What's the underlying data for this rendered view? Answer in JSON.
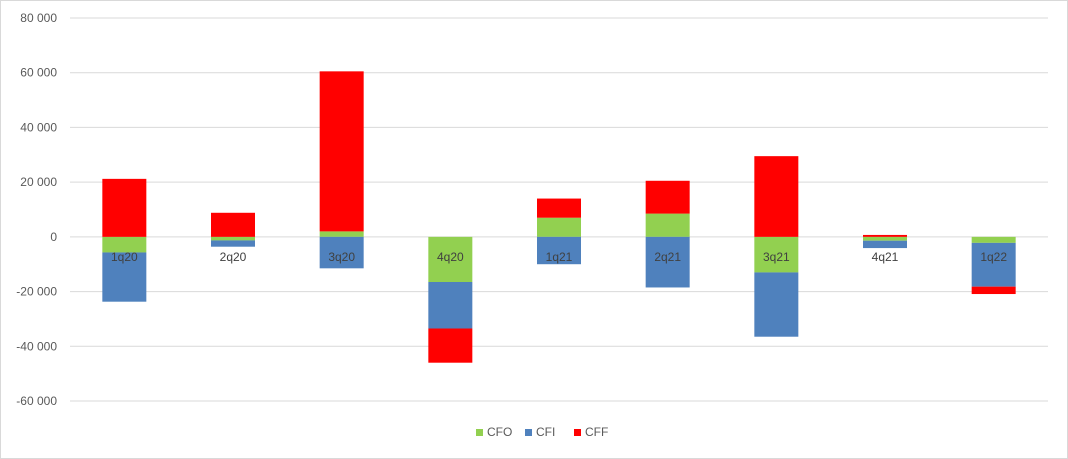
{
  "chart_data": {
    "type": "bar",
    "stacked": true,
    "title": "",
    "xlabel": "",
    "ylabel": "",
    "ylim": [
      -60000,
      80000
    ],
    "yticks": [
      80000,
      60000,
      40000,
      20000,
      0,
      -20000,
      -40000,
      -60000
    ],
    "ytick_labels": [
      "80 000",
      "60 000",
      "40 000",
      "20 000",
      "0",
      "-20 000",
      "-40 000",
      "-60 000"
    ],
    "categories": [
      "1q20",
      "2q20",
      "3q20",
      "4q20",
      "1q21",
      "2q21",
      "3q21",
      "4q21",
      "1q22"
    ],
    "series": [
      {
        "name": "CFO",
        "color": "#92d050",
        "values": [
          -5700,
          -1300,
          2000,
          -16500,
          7000,
          8500,
          -13000,
          -1400,
          -2200
        ]
      },
      {
        "name": "CFI",
        "color": "#4f81bd",
        "values": [
          -18000,
          -2300,
          -11500,
          -17000,
          -10000,
          -18500,
          -23500,
          -2700,
          -16000
        ]
      },
      {
        "name": "CFF",
        "color": "#ff0000",
        "values": [
          21200,
          8800,
          58500,
          -12500,
          7000,
          12000,
          29500,
          700,
          -2700
        ]
      }
    ],
    "grid": true,
    "legend_position": "bottom"
  }
}
